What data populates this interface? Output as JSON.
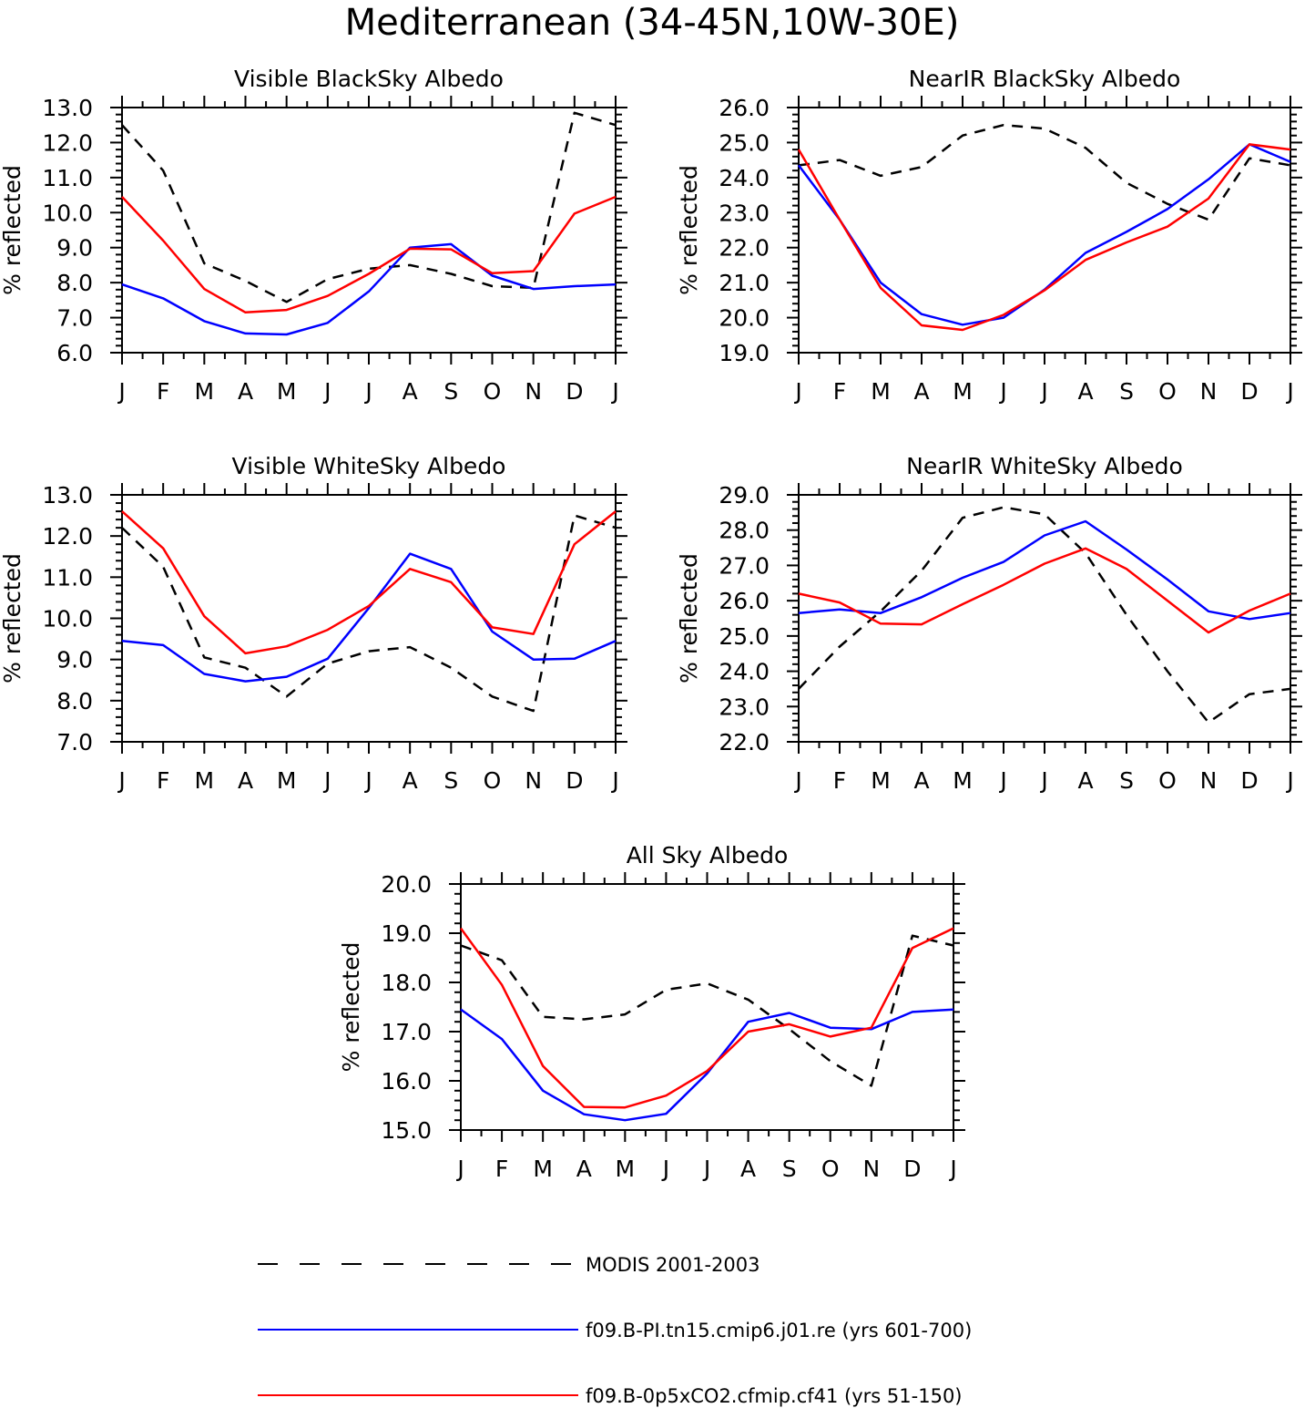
{
  "figure": {
    "title": "Mediterranean (34-45N,10W-30E)"
  },
  "chart_data": [
    {
      "id": "vis-black",
      "type": "line",
      "title": "Visible BlackSky Albedo",
      "ylabel": "% reflected",
      "ylim": [
        6.0,
        13.0
      ],
      "yticks": [
        "6.0",
        "7.0",
        "8.0",
        "9.0",
        "10.0",
        "11.0",
        "12.0",
        "13.0"
      ],
      "categories": [
        "J",
        "F",
        "M",
        "A",
        "M",
        "J",
        "J",
        "A",
        "S",
        "O",
        "N",
        "D",
        "J"
      ],
      "series": [
        {
          "name": "MODIS 2001-2003",
          "values": [
            12.5,
            11.2,
            8.55,
            8.05,
            7.45,
            8.1,
            8.4,
            8.5,
            8.25,
            7.9,
            7.85,
            12.85,
            12.5
          ]
        },
        {
          "name": "f09.B-PI.tn15.cmip6.j01.re (yrs 601-700)",
          "values": [
            7.95,
            7.55,
            6.9,
            6.55,
            6.52,
            6.85,
            7.75,
            9.0,
            9.1,
            8.2,
            7.82,
            7.9,
            7.95
          ]
        },
        {
          "name": "f09.B-0p5xCO2.cfmip.cf41 (yrs 51-150)",
          "values": [
            10.45,
            9.2,
            7.82,
            7.15,
            7.22,
            7.62,
            8.25,
            8.97,
            8.95,
            8.27,
            8.33,
            9.97,
            10.45
          ]
        }
      ]
    },
    {
      "id": "nir-black",
      "type": "line",
      "title": "NearIR BlackSky Albedo",
      "ylabel": "% reflected",
      "ylim": [
        19.0,
        26.0
      ],
      "yticks": [
        "19.0",
        "20.0",
        "21.0",
        "22.0",
        "23.0",
        "24.0",
        "25.0",
        "26.0"
      ],
      "categories": [
        "J",
        "F",
        "M",
        "A",
        "M",
        "J",
        "J",
        "A",
        "S",
        "O",
        "N",
        "D",
        "J"
      ],
      "series": [
        {
          "name": "MODIS 2001-2003",
          "values": [
            24.35,
            24.5,
            24.05,
            24.3,
            25.2,
            25.5,
            25.4,
            24.85,
            23.85,
            23.25,
            22.8,
            24.55,
            24.35
          ]
        },
        {
          "name": "f09.B-PI.tn15.cmip6.j01.re (yrs 601-700)",
          "values": [
            24.35,
            22.8,
            21.0,
            20.1,
            19.8,
            20.0,
            20.8,
            21.85,
            22.45,
            23.1,
            23.95,
            24.95,
            24.45
          ]
        },
        {
          "name": "f09.B-0p5xCO2.cfmip.cf41 (yrs 51-150)",
          "values": [
            24.8,
            22.8,
            20.85,
            19.78,
            19.65,
            20.08,
            20.78,
            21.65,
            22.15,
            22.6,
            23.4,
            24.95,
            24.8
          ]
        }
      ]
    },
    {
      "id": "vis-white",
      "type": "line",
      "title": "Visible WhiteSky Albedo",
      "ylabel": "% reflected",
      "ylim": [
        7.0,
        13.0
      ],
      "yticks": [
        "7.0",
        "8.0",
        "9.0",
        "10.0",
        "11.0",
        "12.0",
        "13.0"
      ],
      "categories": [
        "J",
        "F",
        "M",
        "A",
        "M",
        "J",
        "J",
        "A",
        "S",
        "O",
        "N",
        "D",
        "J"
      ],
      "series": [
        {
          "name": "MODIS 2001-2003",
          "values": [
            12.2,
            11.25,
            9.05,
            8.8,
            8.1,
            8.9,
            9.2,
            9.3,
            8.8,
            8.1,
            7.75,
            12.5,
            12.2
          ]
        },
        {
          "name": "f09.B-PI.tn15.cmip6.j01.re (yrs 601-700)",
          "values": [
            9.45,
            9.35,
            8.65,
            8.47,
            8.58,
            9.02,
            10.25,
            11.57,
            11.2,
            9.68,
            9.0,
            9.02,
            9.45
          ]
        },
        {
          "name": "f09.B-0p5xCO2.cfmip.cf41 (yrs 51-150)",
          "values": [
            12.6,
            11.7,
            10.05,
            9.15,
            9.32,
            9.72,
            10.3,
            11.2,
            10.88,
            9.78,
            9.62,
            11.8,
            12.6
          ]
        }
      ]
    },
    {
      "id": "nir-white",
      "type": "line",
      "title": "NearIR WhiteSky Albedo",
      "ylabel": "% reflected",
      "ylim": [
        22.0,
        29.0
      ],
      "yticks": [
        "22.0",
        "23.0",
        "24.0",
        "25.0",
        "26.0",
        "27.0",
        "28.0",
        "29.0"
      ],
      "categories": [
        "J",
        "F",
        "M",
        "A",
        "M",
        "J",
        "J",
        "A",
        "S",
        "O",
        "N",
        "D",
        "J"
      ],
      "series": [
        {
          "name": "MODIS 2001-2003",
          "values": [
            23.5,
            24.7,
            25.7,
            26.85,
            28.35,
            28.65,
            28.45,
            27.35,
            25.6,
            24.0,
            22.55,
            23.35,
            23.5
          ]
        },
        {
          "name": "f09.B-PI.tn15.cmip6.j01.re (yrs 601-700)",
          "values": [
            25.65,
            25.75,
            25.65,
            26.1,
            26.65,
            27.1,
            27.85,
            28.25,
            27.45,
            26.6,
            25.7,
            25.48,
            25.65
          ]
        },
        {
          "name": "f09.B-0p5xCO2.cfmip.cf41 (yrs 51-150)",
          "values": [
            26.2,
            25.95,
            25.35,
            25.33,
            25.9,
            26.45,
            27.05,
            27.48,
            26.9,
            26.0,
            25.1,
            25.72,
            26.2
          ]
        }
      ]
    },
    {
      "id": "all-sky",
      "type": "line",
      "title": "All Sky Albedo",
      "ylabel": "% reflected",
      "ylim": [
        15.0,
        20.0
      ],
      "yticks": [
        "15.0",
        "16.0",
        "17.0",
        "18.0",
        "19.0",
        "20.0"
      ],
      "categories": [
        "J",
        "F",
        "M",
        "A",
        "M",
        "J",
        "J",
        "A",
        "S",
        "O",
        "N",
        "D",
        "J"
      ],
      "series": [
        {
          "name": "MODIS 2001-2003",
          "values": [
            18.75,
            18.45,
            17.3,
            17.25,
            17.35,
            17.85,
            17.98,
            17.65,
            17.05,
            16.4,
            15.9,
            18.95,
            18.75
          ]
        },
        {
          "name": "f09.B-PI.tn15.cmip6.j01.re (yrs 601-700)",
          "values": [
            17.45,
            16.85,
            15.8,
            15.32,
            15.2,
            15.33,
            16.15,
            17.2,
            17.38,
            17.08,
            17.05,
            17.4,
            17.45
          ]
        },
        {
          "name": "f09.B-0p5xCO2.cfmip.cf41 (yrs 51-150)",
          "values": [
            19.1,
            17.95,
            16.3,
            15.47,
            15.46,
            15.7,
            16.2,
            17.0,
            17.15,
            16.9,
            17.08,
            18.7,
            19.1
          ]
        }
      ]
    }
  ],
  "legend": {
    "items": [
      {
        "label": "MODIS 2001-2003",
        "color": "#000000",
        "style": "dashed"
      },
      {
        "label": "f09.B-PI.tn15.cmip6.j01.re (yrs 601-700)",
        "color": "#0000ff",
        "style": "solid"
      },
      {
        "label": "f09.B-0p5xCO2.cfmip.cf41 (yrs 51-150)",
        "color": "#ff0000",
        "style": "solid"
      }
    ]
  }
}
